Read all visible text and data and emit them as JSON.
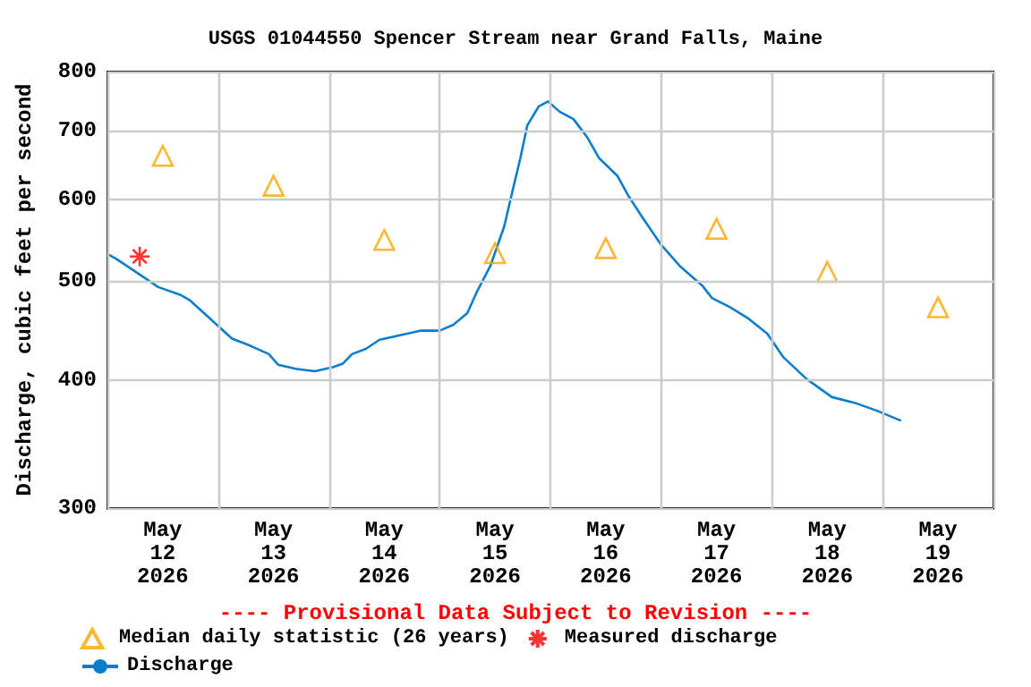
{
  "chart_data": {
    "type": "line",
    "title": "USGS 01044550 Spencer Stream near Grand Falls, Maine",
    "ylabel": "Discharge, cubic feet per second",
    "annotations": [
      "---- Provisional Data Subject to Revision ----"
    ],
    "log": "y",
    "grid": true,
    "legend": "bottom",
    "xlim": [
      "2026-05-12T00:00",
      "2026-05-20T00:00"
    ],
    "xticks": [
      {
        "value": "2026-05-12T00:00",
        "label": null
      },
      {
        "value": "2026-05-12T12:00",
        "label": "May\n12\n2026"
      },
      {
        "value": "2026-05-13T00:00",
        "label": null
      },
      {
        "value": "2026-05-13T12:00",
        "label": "May\n13\n2026"
      },
      {
        "value": "2026-05-14T00:00",
        "label": null
      },
      {
        "value": "2026-05-14T12:00",
        "label": "May\n14\n2026"
      },
      {
        "value": "2026-05-15T00:00",
        "label": null
      },
      {
        "value": "2026-05-15T12:00",
        "label": "May\n15\n2026"
      },
      {
        "value": "2026-05-16T00:00",
        "label": null
      },
      {
        "value": "2026-05-16T12:00",
        "label": "May\n16\n2026"
      },
      {
        "value": "2026-05-17T00:00",
        "label": null
      },
      {
        "value": "2026-05-17T12:00",
        "label": "May\n17\n2026"
      },
      {
        "value": "2026-05-18T00:00",
        "label": null
      },
      {
        "value": "2026-05-18T12:00",
        "label": "May\n18\n2026"
      },
      {
        "value": "2026-05-19T00:00",
        "label": null
      },
      {
        "value": "2026-05-19T12:00",
        "label": "May\n19\n2026"
      },
      {
        "value": "2026-05-20T00:00",
        "label": null
      }
    ],
    "ylim": [
      300,
      800
    ],
    "yticks": [
      300,
      400,
      500,
      600,
      700,
      800
    ],
    "series": [
      {
        "name": "Median daily statistic (26 years)",
        "type": "scatter",
        "marker": "triangle",
        "color": "#ffa500",
        "x": [
          "2026-05-12T12:00",
          "2026-05-13T12:00",
          "2026-05-14T12:00",
          "2026-05-15T12:00",
          "2026-05-16T12:00",
          "2026-05-17T12:00",
          "2026-05-18T12:00",
          "2026-05-19T12:00"
        ],
        "values": [
          662,
          619,
          548,
          532,
          538,
          562,
          510,
          471
        ]
      },
      {
        "name": "Measured discharge",
        "type": "scatter",
        "marker": "cross",
        "color": "#ff0000",
        "x": [
          "2026-05-12T07:00"
        ],
        "values": [
          528
        ]
      },
      {
        "name": "Discharge",
        "marker": "none",
        "color": "#0a7dcc",
        "x": [
          "2026-05-12T00:00",
          "2026-05-12T02:00",
          "2026-05-12T07:00",
          "2026-05-12T11:00",
          "2026-05-12T16:00",
          "2026-05-12T18:00",
          "2026-05-12T23:00",
          "2026-05-13T03:00",
          "2026-05-13T07:00",
          "2026-05-13T11:00",
          "2026-05-13T13:00",
          "2026-05-13T17:00",
          "2026-05-13T21:00",
          "2026-05-14T01:00",
          "2026-05-14T03:00",
          "2026-05-14T05:00",
          "2026-05-14T08:00",
          "2026-05-14T11:00",
          "2026-05-14T15:00",
          "2026-05-14T20:00",
          "2026-05-15T00:00",
          "2026-05-15T03:00",
          "2026-05-15T06:00",
          "2026-05-15T08:00",
          "2026-05-15T11:00",
          "2026-05-15T14:00",
          "2026-05-15T15:30",
          "2026-05-15T17:30",
          "2026-05-15T19:00",
          "2026-05-15T21:30",
          "2026-05-15T23:30",
          "2026-05-16T02:00",
          "2026-05-16T05:00",
          "2026-05-16T08:00",
          "2026-05-16T10:30",
          "2026-05-16T14:30",
          "2026-05-16T17:00",
          "2026-05-16T20:00",
          "2026-05-17T00:00",
          "2026-05-17T04:00",
          "2026-05-17T09:00",
          "2026-05-17T11:00",
          "2026-05-17T15:00",
          "2026-05-17T19:00",
          "2026-05-17T23:00",
          "2026-05-18T02:30",
          "2026-05-18T07:30",
          "2026-05-18T13:00",
          "2026-05-18T18:00",
          "2026-05-18T23:00",
          "2026-05-19T04:00"
        ],
        "values": [
          531,
          525,
          507,
          493,
          484,
          478,
          456,
          439,
          432,
          424,
          414,
          410,
          408,
          412,
          415,
          424,
          429,
          438,
          442,
          447,
          447,
          453,
          465,
          487,
          517,
          565,
          604,
          659,
          709,
          740,
          748,
          731,
          719,
          690,
          659,
          633,
          604,
          576,
          542,
          517,
          494,
          481,
          471,
          459,
          444,
          421,
          401,
          385,
          380,
          373,
          365
        ]
      }
    ]
  }
}
